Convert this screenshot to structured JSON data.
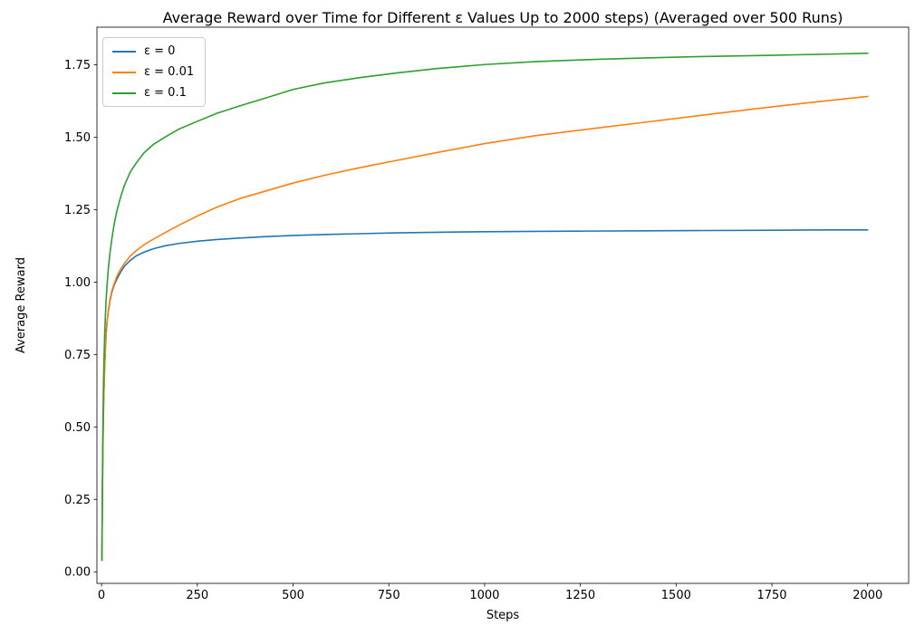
{
  "chart_data": {
    "type": "line",
    "title": "Average Reward over Time for Different ε Values Up to 2000 steps) (Averaged over 500 Runs)",
    "xlabel": "Steps",
    "ylabel": "Average Reward",
    "xlim": [
      -12,
      2107
    ],
    "ylim": [
      -0.04,
      1.88
    ],
    "x_ticks": [
      0,
      250,
      500,
      750,
      1000,
      1250,
      1500,
      1750,
      2000
    ],
    "y_ticks": [
      0.0,
      0.25,
      0.5,
      0.75,
      1.0,
      1.25,
      1.5,
      1.75
    ],
    "grid": false,
    "legend_position": "upper left",
    "x": [
      1,
      2,
      3,
      4,
      5,
      6,
      8,
      10,
      12,
      15,
      18,
      22,
      27,
      33,
      40,
      50,
      60,
      75,
      90,
      110,
      135,
      165,
      200,
      250,
      300,
      360,
      430,
      500,
      580,
      670,
      770,
      875,
      1000,
      1130,
      1270,
      1420,
      1580,
      1750,
      1900,
      2000
    ],
    "series": [
      {
        "name": "ε = 0",
        "color": "#1f77b4",
        "values": [
          0.04,
          0.22,
          0.35,
          0.46,
          0.55,
          0.61,
          0.7,
          0.77,
          0.82,
          0.87,
          0.9,
          0.935,
          0.965,
          0.99,
          1.01,
          1.035,
          1.055,
          1.075,
          1.09,
          1.103,
          1.115,
          1.125,
          1.133,
          1.141,
          1.147,
          1.152,
          1.157,
          1.161,
          1.164,
          1.167,
          1.17,
          1.172,
          1.174,
          1.175,
          1.176,
          1.177,
          1.178,
          1.179,
          1.18,
          1.18
        ]
      },
      {
        "name": "ε = 0.01",
        "color": "#ff7f0e",
        "values": [
          0.04,
          0.22,
          0.35,
          0.46,
          0.55,
          0.61,
          0.7,
          0.77,
          0.82,
          0.87,
          0.905,
          0.94,
          0.97,
          0.995,
          1.02,
          1.045,
          1.065,
          1.09,
          1.108,
          1.128,
          1.148,
          1.17,
          1.195,
          1.228,
          1.258,
          1.288,
          1.315,
          1.342,
          1.368,
          1.394,
          1.42,
          1.447,
          1.478,
          1.505,
          1.528,
          1.552,
          1.578,
          1.605,
          1.627,
          1.641
        ]
      },
      {
        "name": "ε = 0.1",
        "color": "#2ca02c",
        "values": [
          0.04,
          0.26,
          0.42,
          0.54,
          0.64,
          0.71,
          0.81,
          0.88,
          0.94,
          1.0,
          1.05,
          1.1,
          1.15,
          1.2,
          1.245,
          1.295,
          1.335,
          1.38,
          1.41,
          1.445,
          1.475,
          1.5,
          1.527,
          1.555,
          1.582,
          1.608,
          1.636,
          1.665,
          1.687,
          1.705,
          1.722,
          1.737,
          1.751,
          1.761,
          1.768,
          1.774,
          1.779,
          1.783,
          1.787,
          1.79
        ]
      }
    ]
  }
}
